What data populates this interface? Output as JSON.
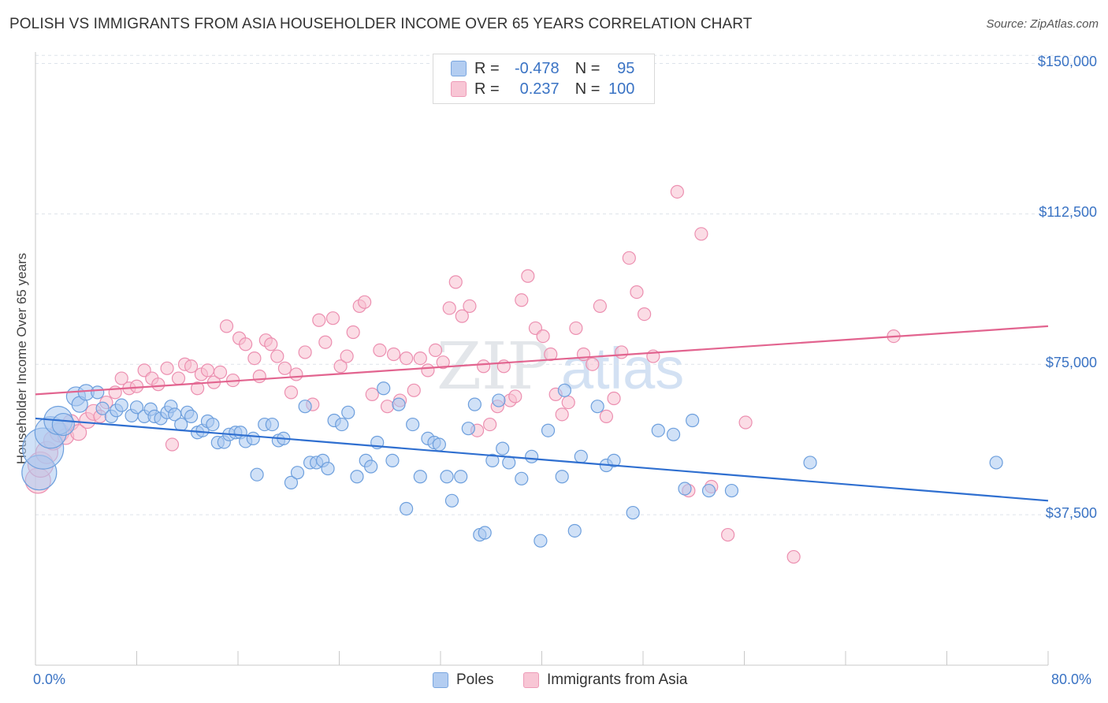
{
  "title": "POLISH VS IMMIGRANTS FROM ASIA HOUSEHOLDER INCOME OVER 65 YEARS CORRELATION CHART",
  "source": "Source: ZipAtlas.com",
  "watermark": "ZIPatlas",
  "colors": {
    "poles_fill": "#a9c8f0",
    "poles_stroke": "#6d9fdd",
    "poles_line": "#2f6fd0",
    "asia_fill": "#f7bfd0",
    "asia_stroke": "#ec8fb0",
    "asia_line": "#e2648f",
    "axis_text": "#3a73c4",
    "grid": "#dde3ea"
  },
  "legend": {
    "rows": [
      {
        "r_label": "R =",
        "r_value": "-0.478",
        "n_label": "N =",
        "n_value": "95"
      },
      {
        "r_label": "R =",
        "r_value": "0.237",
        "n_label": "N =",
        "n_value": "100"
      }
    ]
  },
  "bottom_legend": [
    "Poles",
    "Immigrants from Asia"
  ],
  "chart_data": {
    "type": "scatter",
    "title": "POLISH VS IMMIGRANTS FROM ASIA HOUSEHOLDER INCOME OVER 65 YEARS CORRELATION CHART",
    "xlabel": "",
    "ylabel": "Householder Income Over 65 years",
    "xlim": [
      0,
      80
    ],
    "ylim": [
      0,
      155000
    ],
    "x_tick_labels": [
      "0.0%",
      "80.0%"
    ],
    "y_ticks": [
      37500,
      75000,
      112500,
      150000
    ],
    "y_tick_labels": [
      "$37,500",
      "$75,000",
      "$112,500",
      "$150,000"
    ],
    "grid": true,
    "legend_position": "top-center",
    "series": [
      {
        "name": "Poles",
        "trend": {
          "x": [
            0,
            80
          ],
          "y": [
            61500,
            41000
          ]
        },
        "points": [
          [
            0.3,
            48000,
            22
          ],
          [
            0.6,
            54000,
            26
          ],
          [
            1.2,
            58000,
            20
          ],
          [
            1.8,
            61000,
            18
          ],
          [
            2.2,
            60000,
            14
          ],
          [
            3.2,
            67000,
            12
          ],
          [
            3.5,
            65000,
            10
          ],
          [
            4.0,
            68000,
            10
          ],
          [
            4.9,
            68000,
            8
          ],
          [
            5.3,
            64000,
            8
          ],
          [
            6.0,
            62000,
            8
          ],
          [
            6.4,
            63500,
            8
          ],
          [
            6.8,
            64800,
            8
          ],
          [
            7.6,
            62200,
            8
          ],
          [
            8.0,
            64300,
            8
          ],
          [
            8.6,
            62000,
            8
          ],
          [
            9.1,
            63800,
            8
          ],
          [
            9.4,
            62000,
            8
          ],
          [
            9.9,
            61500,
            8
          ],
          [
            10.4,
            63000,
            8
          ],
          [
            10.7,
            64500,
            8
          ],
          [
            11.0,
            62500,
            8
          ],
          [
            11.5,
            60000,
            8
          ],
          [
            12.0,
            63000,
            8
          ],
          [
            12.3,
            62000,
            8
          ],
          [
            12.8,
            58000,
            8
          ],
          [
            13.2,
            58500,
            8
          ],
          [
            13.6,
            60800,
            8
          ],
          [
            14.0,
            60000,
            8
          ],
          [
            14.4,
            55500,
            8
          ],
          [
            14.9,
            55600,
            8
          ],
          [
            15.3,
            57500,
            8
          ],
          [
            15.8,
            58000,
            8
          ],
          [
            16.2,
            58000,
            8
          ],
          [
            16.6,
            55800,
            8
          ],
          [
            17.2,
            56500,
            8
          ],
          [
            17.5,
            47500,
            8
          ],
          [
            18.1,
            60000,
            8
          ],
          [
            18.7,
            60000,
            8
          ],
          [
            19.2,
            56000,
            8
          ],
          [
            19.6,
            56500,
            8
          ],
          [
            20.2,
            45500,
            8
          ],
          [
            20.7,
            48000,
            8
          ],
          [
            21.3,
            64500,
            8
          ],
          [
            21.7,
            50500,
            8
          ],
          [
            22.2,
            50500,
            8
          ],
          [
            22.7,
            51000,
            8
          ],
          [
            23.1,
            49000,
            8
          ],
          [
            23.6,
            61000,
            8
          ],
          [
            24.2,
            60000,
            8
          ],
          [
            24.7,
            63000,
            8
          ],
          [
            25.4,
            47000,
            8
          ],
          [
            26.1,
            51000,
            8
          ],
          [
            26.5,
            49500,
            8
          ],
          [
            27.0,
            55500,
            8
          ],
          [
            27.5,
            69000,
            8
          ],
          [
            28.2,
            51000,
            8
          ],
          [
            28.7,
            65000,
            8
          ],
          [
            29.3,
            39000,
            8
          ],
          [
            29.8,
            60000,
            8
          ],
          [
            30.4,
            47000,
            8
          ],
          [
            31.0,
            56500,
            8
          ],
          [
            31.5,
            55500,
            8
          ],
          [
            31.9,
            55000,
            8
          ],
          [
            32.5,
            47000,
            8
          ],
          [
            32.9,
            41000,
            8
          ],
          [
            33.6,
            47000,
            8
          ],
          [
            34.2,
            59000,
            8
          ],
          [
            34.7,
            65000,
            8
          ],
          [
            35.1,
            32500,
            8
          ],
          [
            35.5,
            33000,
            8
          ],
          [
            36.1,
            51000,
            8
          ],
          [
            36.6,
            66000,
            8
          ],
          [
            36.9,
            54000,
            8
          ],
          [
            37.4,
            50500,
            8
          ],
          [
            38.4,
            46500,
            8
          ],
          [
            39.2,
            52000,
            8
          ],
          [
            39.9,
            31000,
            8
          ],
          [
            40.5,
            58500,
            8
          ],
          [
            41.6,
            47000,
            8
          ],
          [
            41.8,
            68500,
            8
          ],
          [
            42.6,
            33500,
            8
          ],
          [
            43.1,
            52000,
            8
          ],
          [
            44.4,
            64500,
            8
          ],
          [
            45.1,
            49800,
            8
          ],
          [
            45.7,
            51000,
            8
          ],
          [
            47.2,
            38000,
            8
          ],
          [
            49.2,
            58500,
            8
          ],
          [
            50.4,
            57500,
            8
          ],
          [
            51.3,
            44000,
            8
          ],
          [
            51.9,
            61000,
            8
          ],
          [
            53.2,
            43500,
            8
          ],
          [
            55.0,
            43500,
            8
          ],
          [
            61.2,
            50500,
            8
          ],
          [
            75.9,
            50500,
            8
          ]
        ]
      },
      {
        "name": "Immigrants from Asia",
        "trend": {
          "x": [
            0,
            80
          ],
          "y": [
            67500,
            84500
          ]
        },
        "points": [
          [
            0.2,
            46000,
            16
          ],
          [
            0.4,
            50000,
            16
          ],
          [
            0.9,
            53000,
            14
          ],
          [
            1.4,
            56000,
            12
          ],
          [
            1.9,
            58000,
            12
          ],
          [
            2.4,
            57000,
            10
          ],
          [
            2.8,
            60500,
            10
          ],
          [
            3.4,
            58000,
            10
          ],
          [
            4.1,
            61000,
            10
          ],
          [
            4.6,
            63000,
            10
          ],
          [
            5.1,
            62000,
            8
          ],
          [
            5.6,
            65500,
            8
          ],
          [
            6.3,
            68000,
            8
          ],
          [
            6.8,
            71500,
            8
          ],
          [
            7.4,
            69000,
            8
          ],
          [
            8.0,
            69500,
            8
          ],
          [
            8.6,
            73500,
            8
          ],
          [
            9.2,
            71500,
            8
          ],
          [
            9.7,
            70000,
            8
          ],
          [
            10.4,
            74000,
            8
          ],
          [
            10.8,
            55000,
            8
          ],
          [
            11.3,
            71500,
            8
          ],
          [
            11.8,
            75000,
            8
          ],
          [
            12.3,
            74500,
            8
          ],
          [
            12.8,
            69000,
            8
          ],
          [
            13.1,
            72500,
            8
          ],
          [
            13.6,
            73500,
            8
          ],
          [
            14.1,
            70500,
            8
          ],
          [
            14.6,
            73000,
            8
          ],
          [
            15.1,
            84500,
            8
          ],
          [
            15.6,
            71000,
            8
          ],
          [
            16.1,
            81500,
            8
          ],
          [
            16.6,
            80000,
            8
          ],
          [
            17.3,
            76500,
            8
          ],
          [
            17.7,
            72000,
            8
          ],
          [
            18.2,
            81000,
            8
          ],
          [
            18.6,
            80000,
            8
          ],
          [
            19.1,
            77000,
            8
          ],
          [
            19.7,
            74000,
            8
          ],
          [
            20.2,
            68000,
            8
          ],
          [
            20.6,
            72500,
            8
          ],
          [
            21.3,
            78000,
            8
          ],
          [
            21.9,
            65000,
            8
          ],
          [
            22.4,
            86000,
            8
          ],
          [
            22.9,
            80500,
            8
          ],
          [
            23.5,
            86500,
            8
          ],
          [
            24.1,
            74500,
            8
          ],
          [
            24.6,
            77000,
            8
          ],
          [
            25.1,
            83000,
            8
          ],
          [
            25.6,
            89500,
            8
          ],
          [
            26.0,
            90500,
            8
          ],
          [
            26.6,
            67500,
            8
          ],
          [
            27.2,
            78500,
            8
          ],
          [
            27.8,
            64500,
            8
          ],
          [
            28.3,
            77500,
            8
          ],
          [
            28.8,
            66000,
            8
          ],
          [
            29.3,
            76500,
            8
          ],
          [
            29.9,
            68500,
            8
          ],
          [
            30.4,
            76500,
            8
          ],
          [
            31.0,
            73500,
            8
          ],
          [
            31.6,
            78500,
            8
          ],
          [
            32.2,
            75500,
            8
          ],
          [
            32.7,
            89000,
            8
          ],
          [
            33.2,
            95500,
            8
          ],
          [
            33.7,
            87000,
            8
          ],
          [
            34.3,
            89500,
            8
          ],
          [
            34.9,
            58500,
            8
          ],
          [
            35.4,
            74500,
            8
          ],
          [
            35.9,
            60000,
            8
          ],
          [
            36.5,
            64500,
            8
          ],
          [
            37.0,
            74500,
            8
          ],
          [
            37.5,
            66000,
            8
          ],
          [
            37.9,
            67000,
            8
          ],
          [
            38.4,
            91000,
            8
          ],
          [
            38.9,
            97000,
            8
          ],
          [
            39.5,
            84000,
            8
          ],
          [
            40.1,
            82000,
            8
          ],
          [
            40.7,
            77500,
            8
          ],
          [
            41.1,
            67500,
            8
          ],
          [
            41.6,
            62500,
            8
          ],
          [
            42.1,
            65500,
            8
          ],
          [
            42.7,
            84000,
            8
          ],
          [
            43.3,
            77500,
            8
          ],
          [
            44.0,
            75000,
            8
          ],
          [
            44.6,
            89500,
            8
          ],
          [
            45.1,
            62000,
            8
          ],
          [
            45.7,
            66500,
            8
          ],
          [
            46.3,
            78000,
            8
          ],
          [
            46.9,
            101500,
            8
          ],
          [
            47.5,
            93000,
            8
          ],
          [
            48.1,
            87500,
            8
          ],
          [
            48.8,
            77000,
            8
          ],
          [
            50.7,
            118000,
            8
          ],
          [
            51.6,
            43500,
            8
          ],
          [
            52.6,
            107500,
            8
          ],
          [
            53.4,
            44500,
            8
          ],
          [
            54.7,
            32500,
            8
          ],
          [
            56.1,
            60500,
            8
          ],
          [
            59.9,
            27000,
            8
          ],
          [
            67.8,
            82000,
            8
          ]
        ]
      }
    ]
  }
}
